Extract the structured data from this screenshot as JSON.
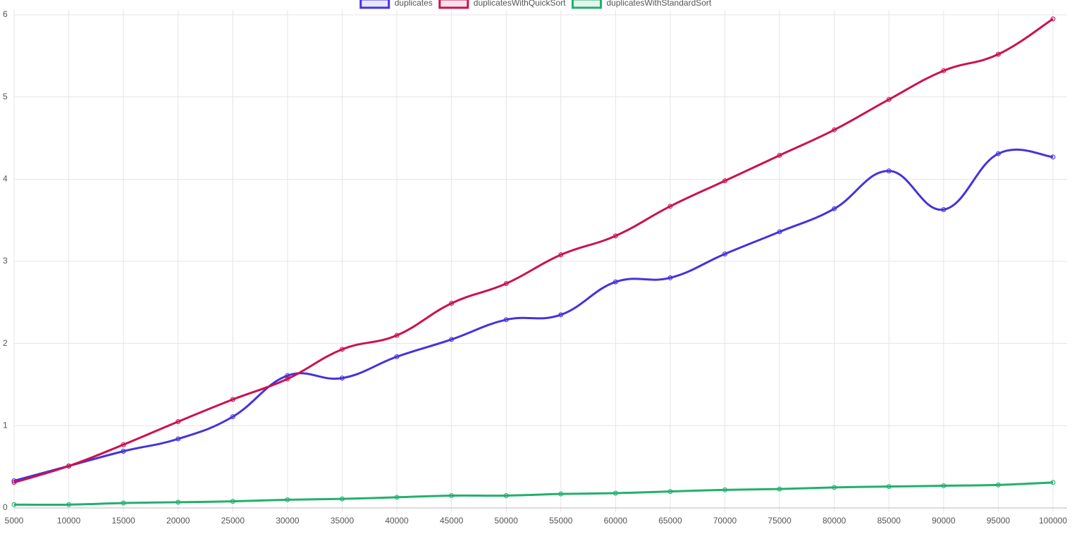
{
  "chart_data": {
    "type": "line",
    "x": [
      5000,
      10000,
      15000,
      20000,
      25000,
      30000,
      35000,
      40000,
      45000,
      50000,
      55000,
      60000,
      65000,
      70000,
      75000,
      80000,
      85000,
      90000,
      95000,
      100000
    ],
    "xlim": [
      5000,
      100000
    ],
    "xticks": [
      5000,
      10000,
      15000,
      20000,
      25000,
      30000,
      35000,
      40000,
      45000,
      50000,
      55000,
      60000,
      65000,
      70000,
      75000,
      80000,
      85000,
      90000,
      95000,
      100000
    ],
    "ylim": [
      0,
      6
    ],
    "yticks": [
      0,
      1,
      2,
      3,
      4,
      5,
      6
    ],
    "grid": true,
    "legend": "top",
    "series": [
      {
        "name": "duplicates",
        "color": "#4433dd",
        "values": [
          0.33,
          0.51,
          0.69,
          0.84,
          1.11,
          1.61,
          1.58,
          1.84,
          2.05,
          2.29,
          2.35,
          2.75,
          2.8,
          3.09,
          3.36,
          3.64,
          4.1,
          3.63,
          4.31,
          4.27
        ]
      },
      {
        "name": "duplicatesWithQuickSort",
        "color": "#cc1150",
        "values": [
          0.31,
          0.51,
          0.77,
          1.05,
          1.32,
          1.57,
          1.93,
          2.1,
          2.49,
          2.73,
          3.08,
          3.31,
          3.67,
          3.98,
          4.29,
          4.6,
          4.97,
          5.32,
          5.52,
          5.95
        ]
      },
      {
        "name": "duplicatesWithStandardSort",
        "color": "#22b06e",
        "values": [
          0.04,
          0.04,
          0.06,
          0.07,
          0.08,
          0.1,
          0.11,
          0.13,
          0.15,
          0.15,
          0.17,
          0.18,
          0.2,
          0.22,
          0.23,
          0.25,
          0.26,
          0.27,
          0.28,
          0.31
        ]
      }
    ]
  }
}
